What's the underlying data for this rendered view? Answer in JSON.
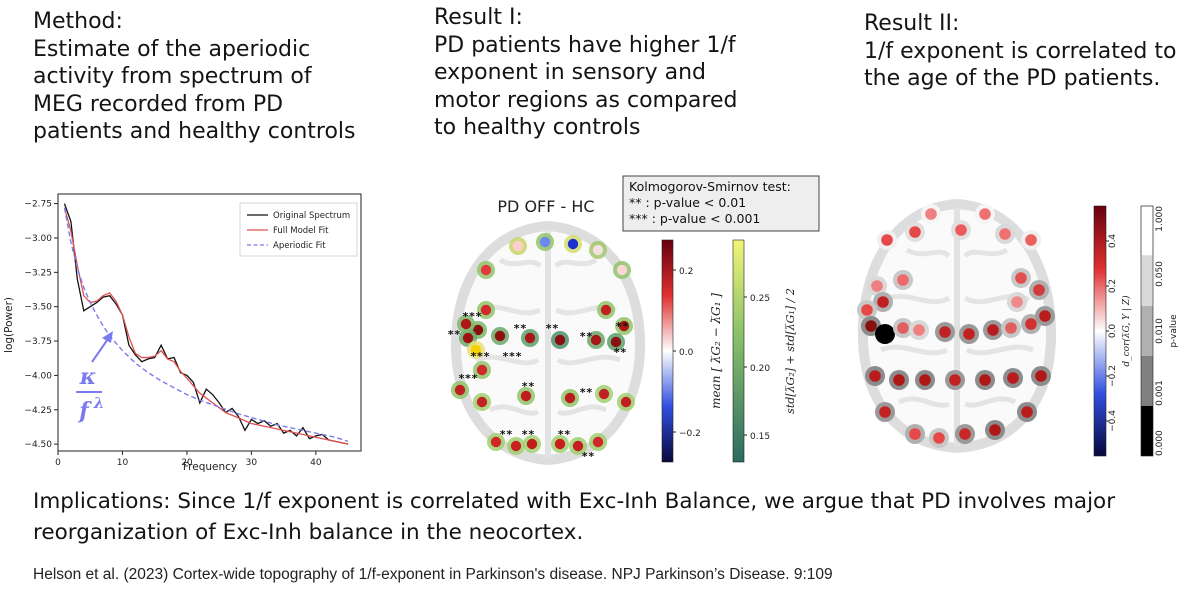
{
  "headings": {
    "method": "Method:\nEstimate of the aperiodic\nactivity from spectrum of\nMEG recorded from PD\npatients and healthy controls",
    "result1": "Result I:\nPD patients have higher 1/f\nexponent in sensory and\nmotor regions as compared\nto healthy controls",
    "result2": "Result II:\n1/f exponent is correlated to\nthe age of the PD patients."
  },
  "implications": "Implications: Since 1/f exponent is correlated with Exc-Inh Balance, we argue that PD involves major reorganization of Exc-Inh balance in the neocortex.",
  "citation": "Helson et al. (2023) Cortex-wide topography of 1/f-exponent in Parkinson's disease. NPJ Parkinson’s Disease. 9:109",
  "spectrum": {
    "xlabel": "Frequency",
    "ylabel": "log(Power)",
    "formula_num": "κ",
    "formula_den": "f",
    "formula_exp": "λ",
    "legend": [
      "Original Spectrum",
      "Full Model Fit",
      "Aperiodic Fit"
    ],
    "colors": {
      "original": "#111111",
      "model": "#e05050",
      "aperiodic": "#7b7bef",
      "formula": "#7b7bef"
    }
  },
  "chart_data": {
    "type": "line",
    "xlabel": "Frequency",
    "ylabel": "log(Power)",
    "xlim": [
      0,
      47
    ],
    "ylim": [
      -4.55,
      -2.68
    ],
    "xticks": [
      0,
      10,
      20,
      30,
      40
    ],
    "yticks": [
      -2.75,
      -3.0,
      -3.25,
      -3.5,
      -3.75,
      -4.0,
      -4.25,
      -4.5
    ],
    "series": [
      {
        "name": "Original Spectrum",
        "x": [
          1,
          2,
          3,
          4,
          5,
          6,
          7,
          8,
          9,
          10,
          11,
          12,
          13,
          14,
          15,
          16,
          17,
          18,
          19,
          20,
          21,
          22,
          23,
          24,
          25,
          26,
          27,
          28,
          29,
          30,
          31,
          32,
          33,
          34,
          35,
          36,
          37,
          38,
          39,
          40,
          41,
          42,
          43,
          44,
          45
        ],
        "y": [
          -2.75,
          -2.88,
          -3.3,
          -3.53,
          -3.5,
          -3.47,
          -3.43,
          -3.42,
          -3.48,
          -3.56,
          -3.78,
          -3.85,
          -3.9,
          -3.88,
          -3.87,
          -3.78,
          -3.88,
          -3.87,
          -3.98,
          -4.0,
          -4.05,
          -4.2,
          -4.1,
          -4.14,
          -4.2,
          -4.27,
          -4.24,
          -4.3,
          -4.4,
          -4.32,
          -4.35,
          -4.33,
          -4.37,
          -4.35,
          -4.42,
          -4.4,
          -4.44,
          -4.38,
          -4.46,
          -4.44,
          -4.43,
          -4.47,
          -4.48,
          -4.49,
          -4.5
        ]
      },
      {
        "name": "Full Model Fit",
        "x": [
          1,
          2,
          3,
          4,
          5,
          6,
          7,
          8,
          9,
          10,
          11,
          12,
          13,
          14,
          15,
          16,
          17,
          18,
          19,
          20,
          22,
          24,
          26,
          28,
          30,
          32,
          34,
          36,
          38,
          40,
          42,
          45
        ],
        "y": [
          -2.78,
          -2.95,
          -3.2,
          -3.42,
          -3.47,
          -3.46,
          -3.42,
          -3.4,
          -3.46,
          -3.56,
          -3.72,
          -3.84,
          -3.87,
          -3.87,
          -3.86,
          -3.82,
          -3.88,
          -3.9,
          -3.97,
          -4.02,
          -4.13,
          -4.2,
          -4.27,
          -4.31,
          -4.35,
          -4.37,
          -4.39,
          -4.41,
          -4.43,
          -4.45,
          -4.47,
          -4.5
        ]
      },
      {
        "name": "Aperiodic Fit",
        "x": [
          1,
          2,
          3,
          4,
          5,
          6,
          7,
          8,
          10,
          12,
          14,
          16,
          18,
          20,
          22,
          25,
          28,
          31,
          34,
          37,
          40,
          43,
          45
        ],
        "y": [
          -2.78,
          -3.03,
          -3.22,
          -3.36,
          -3.47,
          -3.56,
          -3.64,
          -3.71,
          -3.82,
          -3.91,
          -3.98,
          -4.04,
          -4.09,
          -4.14,
          -4.18,
          -4.23,
          -4.28,
          -4.32,
          -4.36,
          -4.39,
          -4.42,
          -4.45,
          -4.48
        ]
      }
    ]
  },
  "brain1": {
    "title": "PD OFF - HC",
    "ks_title": "Kolmogorov-Smirnov test:",
    "ks_line1": "**  : p-value < 0.01",
    "ks_line2": "*** : p-value < 0.001",
    "cbar1_label": "mean [ λ̅G₂ − λ̅G₁ ]",
    "cbar1_ticks": [
      "0.2",
      "0.0",
      "−0.2"
    ],
    "cbar2_label": "std[λ̅G₂] + std[λ̅G₁] / 2",
    "cbar2_ticks": [
      "0.25",
      "0.20",
      "0.15"
    ]
  },
  "brain2": {
    "cbar1_label": "d_cor(λ̅G, Y | Z)",
    "cbar1_ticks": [
      "0.4",
      "0.2",
      "0.0",
      "−0.2",
      "−0.4"
    ],
    "cbar2_label": "p-value",
    "cbar2_ticks": [
      "1.000",
      "0.050",
      "0.010",
      "0.001",
      "0.000"
    ]
  }
}
